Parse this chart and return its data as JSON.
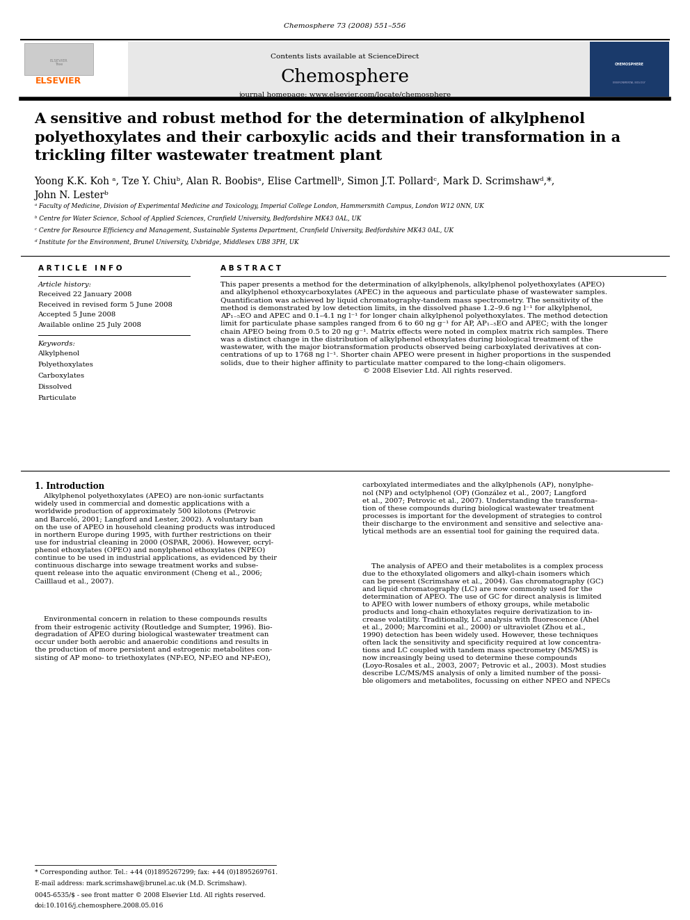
{
  "page_width": 9.92,
  "page_height": 13.23,
  "dpi": 100,
  "background": "#ffffff",
  "journal_ref": "Chemosphere 73 (2008) 551–556",
  "header_bg": "#e8e8e8",
  "header_text": "Contents lists available at ScienceDirect",
  "sciencedirect_color": "#1a6faf",
  "journal_name": "Chemosphere",
  "journal_homepage": "journal homepage: www.elsevier.com/locate/chemosphere",
  "elsevier_color": "#ff6600",
  "elsevier_text": "ELSEVIER",
  "title": "A sensitive and robust method for the determination of alkylphenol\npolyethoxylates and their carboxylic acids and their transformation in a\ntrickling filter wastewater treatment plant",
  "authors": "Yoong K.K. Koh ᵃ, Tze Y. Chiuᵇ, Alan R. Boobisᵃ, Elise Cartmellᵇ, Simon J.T. Pollardᶜ, Mark D. Scrimshawᵈ,*,\nJohn N. Lesterᵇ",
  "affil_a": "ᵃ Faculty of Medicine, Division of Experimental Medicine and Toxicology, Imperial College London, Hammersmith Campus, London W12 0NN, UK",
  "affil_b": "ᵇ Centre for Water Science, School of Applied Sciences, Cranfield University, Bedfordshire MK43 0AL, UK",
  "affil_c": "ᶜ Centre for Resource Efficiency and Management, Sustainable Systems Department, Cranfield University, Bedfordshire MK43 0AL, UK",
  "affil_d": "ᵈ Institute for the Environment, Brunel University, Uxbridge, Middlesex UB8 3PH, UK",
  "article_info_label": "A R T I C L E   I N F O",
  "abstract_label": "A B S T R A C T",
  "article_history_label": "Article history:",
  "received": "Received 22 January 2008",
  "revised": "Received in revised form 5 June 2008",
  "accepted": "Accepted 5 June 2008",
  "available": "Available online 25 July 2008",
  "keywords_label": "Keywords:",
  "keywords": [
    "Alkylphenol",
    "Polyethoxylates",
    "Carboxylates",
    "Dissolved",
    "Particulate"
  ],
  "abstract_text": "This paper presents a method for the determination of alkylphenols, alkylphenol polyethoxylates (APEO)\nand alkylphenol ethoxycarboxylates (APEC) in the aqueous and particulate phase of wastewater samples.\nQuantification was achieved by liquid chromatography-tandem mass spectrometry. The sensitivity of the\nmethod is demonstrated by low detection limits, in the dissolved phase 1.2–9.6 ng l⁻¹ for alkylphenol,\nAP₁₋₅EO and APEC and 0.1–4.1 ng l⁻¹ for longer chain alkylphenol polyethoxylates. The method detection\nlimit for particulate phase samples ranged from 6 to 60 ng g⁻¹ for AP, AP₁₋₅EO and APEC; with the longer\nchain APEO being from 0.5 to 20 ng g⁻¹. Matrix effects were noted in complex matrix rich samples. There\nwas a distinct change in the distribution of alkylphenol ethoxylates during biological treatment of the\nwastewater, with the major biotransformation products observed being carboxylated derivatives at con-\ncentrations of up to 1768 ng l⁻¹. Shorter chain APEO were present in higher proportions in the suspended\nsolids, due to their higher affinity to particulate matter compared to the long-chain oligomers.\n                                                               © 2008 Elsevier Ltd. All rights reserved.",
  "intro_label": "1. Introduction",
  "intro_col1_p1": "    Alkylphenol polyethoxylates (APEO) are non-ionic surfactants\nwidely used in commercial and domestic applications with a\nworldwide production of approximately 500 kilotons (Petrovic\nand Barceló, 2001; Langford and Lester, 2002). A voluntary ban\non the use of APEO in household cleaning products was introduced\nin northern Europe during 1995, with further restrictions on their\nuse for industrial cleaning in 2000 (OSPAR, 2006). However, ocryl-\nphenol ethoxylates (OPEO) and nonylphenol ethoxylates (NPEO)\ncontinue to be used in industrial applications, as evidenced by their\ncontinuous discharge into sewage treatment works and subse-\nquent release into the aquatic environment (Cheng et al., 2006;\nCailllaud et al., 2007).",
  "intro_col1_p2": "    Environmental concern in relation to these compounds results\nfrom their estrogenic activity (Routledge and Sumpter, 1996). Bio-\ndegradation of APEO during biological wastewater treatment can\noccur under both aerobic and anaerobic conditions and results in\nthe production of more persistent and estrogenic metabolites con-\nsisting of AP mono- to triethoxylates (NP₁EO, NP₂EO and NP₃EO),",
  "intro_col2_p1": "carboxylated intermediates and the alkylphenols (AP), nonylphe-\nnol (NP) and octylphenol (OP) (González et al., 2007; Langford\net al., 2007; Petrovic et al., 2007). Understanding the transforma-\ntion of these compounds during biological wastewater treatment\nprocesses is important for the development of strategies to control\ntheir discharge to the environment and sensitive and selective ana-\nlytical methods are an essential tool for gaining the required data.",
  "intro_col2_p2": "    The analysis of APEO and their metabolites is a complex process\ndue to the ethoxylated oligomers and alkyl-chain isomers which\ncan be present (Scrimshaw et al., 2004). Gas chromatography (GC)\nand liquid chromatography (LC) are now commonly used for the\ndetermination of APEO. The use of GC for direct analysis is limited\nto APEO with lower numbers of ethoxy groups, while metabolic\nproducts and long-chain ethoxylates require derivatization to in-\ncrease volatility. Traditionally, LC analysis with fluorescence (Ahel\net al., 2000; Marcomini et al., 2000) or ultraviolet (Zhou et al.,\n1990) detection has been widely used. However, these techniques\noften lack the sensitivity and specificity required at low concentra-\ntions and LC coupled with tandem mass spectrometry (MS/MS) is\nnow increasingly being used to determine these compounds\n(Loyo-Rosales et al., 2003, 2007; Petrovic et al., 2003). Most studies\ndescribe LC/MS/MS analysis of only a limited number of the possi-\nble oligomers and metabolites, focussing on either NPEO and NPECs",
  "footnote_star": "* Corresponding author. Tel.: +44 (0)1895267299; fax: +44 (0)1895269761.",
  "footnote_email": "E-mail address: mark.scrimshaw@brunel.ac.uk (M.D. Scrimshaw).",
  "footer_line1": "0045-6535/$ - see front matter © 2008 Elsevier Ltd. All rights reserved.",
  "footer_line2": "doi:10.1016/j.chemosphere.2008.05.016"
}
